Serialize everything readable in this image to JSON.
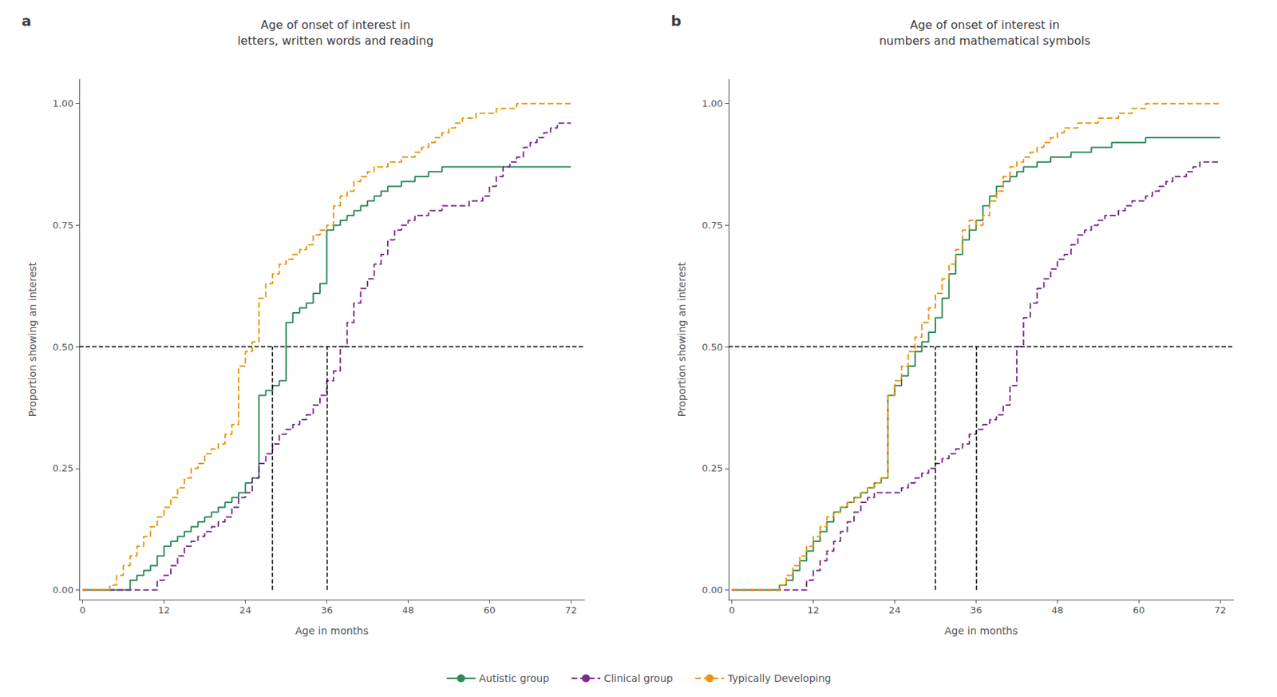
{
  "chart_data": [
    {
      "type": "step",
      "title": "Age of onset of interest in\nletters, written words and reading",
      "panel_label": "a",
      "xlabel": "Age in months",
      "ylabel": "Proportion showing an interest",
      "xlim": [
        -0.5,
        74
      ],
      "xticks": [
        0,
        12,
        24,
        36,
        48,
        60,
        72
      ],
      "ylim": [
        -0.02,
        1.05
      ],
      "yticks": [
        {
          "value": 0,
          "label": "0.00"
        },
        0.25,
        {
          "value": 0.5,
          "label": "0.50"
        },
        0.75,
        {
          "value": 1,
          "label": "1.00"
        }
      ],
      "grid": false,
      "legend": "bottom",
      "series": [
        {
          "name": "Autistic group",
          "color": "#2e8b57",
          "line_style": "solid",
          "x": [
            0,
            6,
            7,
            8,
            9,
            10,
            11,
            12,
            13,
            14,
            15,
            16,
            17,
            18,
            19,
            20,
            21,
            22,
            23,
            24,
            25,
            26,
            27,
            28,
            29,
            30,
            31,
            32,
            33,
            34,
            35,
            36,
            37,
            38,
            39,
            40,
            41,
            42,
            43,
            44,
            45,
            46,
            47,
            48,
            49,
            50,
            51,
            52,
            53,
            54,
            55,
            56,
            57,
            58,
            59,
            60,
            61,
            62,
            63,
            64,
            65,
            66,
            67,
            68,
            69,
            70,
            71,
            72
          ],
          "values": [
            0.0,
            0.0,
            0.02,
            0.03,
            0.04,
            0.05,
            0.07,
            0.09,
            0.1,
            0.11,
            0.12,
            0.13,
            0.14,
            0.15,
            0.16,
            0.17,
            0.18,
            0.19,
            0.2,
            0.22,
            0.23,
            0.4,
            0.41,
            0.42,
            0.43,
            0.55,
            0.57,
            0.58,
            0.59,
            0.61,
            0.63,
            0.74,
            0.75,
            0.76,
            0.77,
            0.78,
            0.79,
            0.8,
            0.81,
            0.82,
            0.83,
            0.83,
            0.84,
            0.84,
            0.85,
            0.85,
            0.86,
            0.86,
            0.87,
            0.87,
            0.87,
            0.87,
            0.87,
            0.87,
            0.87,
            0.87,
            0.87,
            0.87,
            0.87,
            0.87,
            0.87,
            0.87,
            0.87,
            0.87,
            0.87,
            0.87,
            0.87,
            0.87
          ]
        },
        {
          "name": "Clinical group",
          "color": "#7b2d8b",
          "line_style": "dashed",
          "x": [
            0,
            10,
            11,
            12,
            13,
            14,
            15,
            16,
            17,
            18,
            19,
            20,
            21,
            22,
            23,
            24,
            25,
            26,
            27,
            28,
            29,
            30,
            31,
            32,
            33,
            34,
            35,
            36,
            37,
            38,
            39,
            40,
            41,
            42,
            43,
            44,
            45,
            46,
            47,
            48,
            49,
            50,
            51,
            52,
            53,
            54,
            55,
            56,
            57,
            58,
            59,
            60,
            61,
            62,
            63,
            64,
            65,
            66,
            67,
            68,
            69,
            70,
            71,
            72
          ],
          "values": [
            0.0,
            0.0,
            0.02,
            0.03,
            0.05,
            0.07,
            0.09,
            0.1,
            0.11,
            0.12,
            0.13,
            0.14,
            0.15,
            0.17,
            0.19,
            0.2,
            0.23,
            0.26,
            0.28,
            0.3,
            0.32,
            0.33,
            0.34,
            0.35,
            0.36,
            0.38,
            0.4,
            0.43,
            0.45,
            0.5,
            0.55,
            0.59,
            0.62,
            0.64,
            0.67,
            0.69,
            0.72,
            0.74,
            0.75,
            0.76,
            0.77,
            0.77,
            0.78,
            0.78,
            0.79,
            0.79,
            0.79,
            0.79,
            0.8,
            0.8,
            0.81,
            0.83,
            0.85,
            0.87,
            0.88,
            0.89,
            0.91,
            0.92,
            0.93,
            0.94,
            0.95,
            0.96,
            0.96,
            0.96
          ]
        },
        {
          "name": "Typically Developing",
          "color": "#e8960a",
          "line_style": "dashed",
          "x": [
            0,
            4,
            5,
            6,
            7,
            8,
            9,
            10,
            11,
            12,
            13,
            14,
            15,
            16,
            17,
            18,
            19,
            20,
            21,
            22,
            23,
            24,
            25,
            26,
            27,
            28,
            29,
            30,
            31,
            32,
            33,
            34,
            35,
            36,
            37,
            38,
            39,
            40,
            41,
            42,
            43,
            44,
            45,
            46,
            47,
            48,
            49,
            50,
            51,
            52,
            53,
            54,
            55,
            56,
            57,
            58,
            59,
            60,
            61,
            62,
            63,
            64,
            65,
            66,
            67,
            68,
            69,
            70,
            71,
            72
          ],
          "values": [
            0.0,
            0.01,
            0.03,
            0.05,
            0.07,
            0.09,
            0.11,
            0.13,
            0.15,
            0.17,
            0.19,
            0.21,
            0.23,
            0.25,
            0.26,
            0.28,
            0.29,
            0.3,
            0.32,
            0.34,
            0.46,
            0.49,
            0.51,
            0.6,
            0.63,
            0.65,
            0.67,
            0.68,
            0.69,
            0.7,
            0.71,
            0.73,
            0.74,
            0.75,
            0.79,
            0.81,
            0.82,
            0.84,
            0.85,
            0.86,
            0.87,
            0.87,
            0.88,
            0.88,
            0.89,
            0.89,
            0.9,
            0.91,
            0.92,
            0.93,
            0.94,
            0.95,
            0.96,
            0.97,
            0.97,
            0.98,
            0.98,
            0.98,
            0.99,
            0.99,
            0.99,
            1.0,
            1.0,
            1.0,
            1.0,
            1.0,
            1.0,
            1.0,
            1.0,
            1.0
          ]
        }
      ],
      "reference_lines": [
        {
          "y": 0.5,
          "color": "#000000",
          "line_style": "dashed"
        },
        {
          "x": 28,
          "y_from": 0,
          "y_to": 0.5,
          "color": "#000000",
          "line_style": "dashed"
        },
        {
          "x": 36,
          "y_from": 0,
          "y_to": 0.5,
          "color": "#000000",
          "line_style": "dashed"
        }
      ]
    },
    {
      "type": "step",
      "title": "Age of onset of interest in\nnumbers and mathematical symbols",
      "panel_label": "b",
      "xlabel": "Age in months",
      "ylabel": "Proportion showing an interest",
      "xlim": [
        -0.5,
        74
      ],
      "xticks": [
        0,
        12,
        24,
        36,
        48,
        60,
        72
      ],
      "ylim": [
        -0.02,
        1.05
      ],
      "yticks": [
        {
          "value": 0,
          "label": "0.00"
        },
        0.25,
        {
          "value": 0.5,
          "label": "0.50"
        },
        0.75,
        {
          "value": 1,
          "label": "1.00"
        }
      ],
      "grid": false,
      "legend": "bottom",
      "series": [
        {
          "name": "Autistic group",
          "color": "#2e8b57",
          "line_style": "solid",
          "x": [
            0,
            6,
            7,
            8,
            9,
            10,
            11,
            12,
            13,
            14,
            15,
            16,
            17,
            18,
            19,
            20,
            21,
            22,
            23,
            24,
            25,
            26,
            27,
            28,
            29,
            30,
            31,
            32,
            33,
            34,
            35,
            36,
            37,
            38,
            39,
            40,
            41,
            42,
            43,
            44,
            45,
            46,
            47,
            48,
            49,
            50,
            51,
            52,
            53,
            54,
            55,
            56,
            57,
            58,
            59,
            60,
            61,
            62,
            63,
            64,
            65,
            66,
            67,
            68,
            69,
            70,
            71,
            72
          ],
          "values": [
            0.0,
            0.0,
            0.01,
            0.02,
            0.04,
            0.06,
            0.08,
            0.1,
            0.12,
            0.14,
            0.16,
            0.17,
            0.18,
            0.19,
            0.2,
            0.21,
            0.22,
            0.23,
            0.4,
            0.42,
            0.44,
            0.46,
            0.49,
            0.51,
            0.53,
            0.56,
            0.6,
            0.65,
            0.69,
            0.72,
            0.74,
            0.76,
            0.79,
            0.81,
            0.83,
            0.84,
            0.85,
            0.86,
            0.87,
            0.87,
            0.88,
            0.88,
            0.89,
            0.89,
            0.89,
            0.9,
            0.9,
            0.9,
            0.91,
            0.91,
            0.91,
            0.92,
            0.92,
            0.92,
            0.92,
            0.92,
            0.93,
            0.93,
            0.93,
            0.93,
            0.93,
            0.93,
            0.93,
            0.93,
            0.93,
            0.93,
            0.93,
            0.93
          ]
        },
        {
          "name": "Clinical group",
          "color": "#7b2d8b",
          "line_style": "dashed",
          "x": [
            0,
            10,
            11,
            12,
            13,
            14,
            15,
            16,
            17,
            18,
            19,
            20,
            21,
            22,
            23,
            24,
            25,
            26,
            27,
            28,
            29,
            30,
            31,
            32,
            33,
            34,
            35,
            36,
            37,
            38,
            39,
            40,
            41,
            42,
            43,
            44,
            45,
            46,
            47,
            48,
            49,
            50,
            51,
            52,
            53,
            54,
            55,
            56,
            57,
            58,
            59,
            60,
            61,
            62,
            63,
            64,
            65,
            66,
            67,
            68,
            69,
            70,
            71,
            72
          ],
          "values": [
            0.0,
            0.0,
            0.02,
            0.04,
            0.06,
            0.08,
            0.1,
            0.12,
            0.14,
            0.16,
            0.18,
            0.19,
            0.2,
            0.2,
            0.2,
            0.2,
            0.21,
            0.22,
            0.23,
            0.24,
            0.25,
            0.26,
            0.27,
            0.28,
            0.29,
            0.3,
            0.32,
            0.33,
            0.34,
            0.35,
            0.36,
            0.38,
            0.42,
            0.5,
            0.56,
            0.59,
            0.62,
            0.64,
            0.66,
            0.68,
            0.69,
            0.71,
            0.73,
            0.74,
            0.75,
            0.76,
            0.77,
            0.77,
            0.78,
            0.79,
            0.8,
            0.8,
            0.81,
            0.82,
            0.83,
            0.84,
            0.85,
            0.85,
            0.86,
            0.87,
            0.88,
            0.88,
            0.88,
            0.88
          ]
        },
        {
          "name": "Typically Developing",
          "color": "#e8960a",
          "line_style": "dashed",
          "x": [
            0,
            6,
            7,
            8,
            9,
            10,
            11,
            12,
            13,
            14,
            15,
            16,
            17,
            18,
            19,
            20,
            21,
            22,
            23,
            24,
            25,
            26,
            27,
            28,
            29,
            30,
            31,
            32,
            33,
            34,
            35,
            36,
            37,
            38,
            39,
            40,
            41,
            42,
            43,
            44,
            45,
            46,
            47,
            48,
            49,
            50,
            51,
            52,
            53,
            54,
            55,
            56,
            57,
            58,
            59,
            60,
            61,
            62,
            63,
            64,
            65,
            66,
            67,
            68,
            69,
            70,
            71,
            72
          ],
          "values": [
            0.0,
            0.0,
            0.01,
            0.03,
            0.05,
            0.07,
            0.09,
            0.11,
            0.13,
            0.15,
            0.16,
            0.17,
            0.18,
            0.19,
            0.2,
            0.21,
            0.22,
            0.23,
            0.4,
            0.43,
            0.46,
            0.49,
            0.52,
            0.55,
            0.58,
            0.61,
            0.64,
            0.67,
            0.7,
            0.74,
            0.76,
            0.75,
            0.77,
            0.8,
            0.82,
            0.85,
            0.87,
            0.88,
            0.89,
            0.9,
            0.91,
            0.92,
            0.93,
            0.94,
            0.95,
            0.95,
            0.96,
            0.96,
            0.96,
            0.97,
            0.97,
            0.97,
            0.98,
            0.98,
            0.99,
            0.99,
            1.0,
            1.0,
            1.0,
            1.0,
            1.0,
            1.0,
            1.0,
            1.0,
            1.0,
            1.0,
            1.0,
            1.0
          ]
        }
      ],
      "reference_lines": [
        {
          "y": 0.5,
          "color": "#000000",
          "line_style": "dashed"
        },
        {
          "x": 30,
          "y_from": 0,
          "y_to": 0.5,
          "color": "#000000",
          "line_style": "dashed"
        },
        {
          "x": 36,
          "y_from": 0,
          "y_to": 0.5,
          "color": "#000000",
          "line_style": "dashed"
        }
      ]
    }
  ]
}
